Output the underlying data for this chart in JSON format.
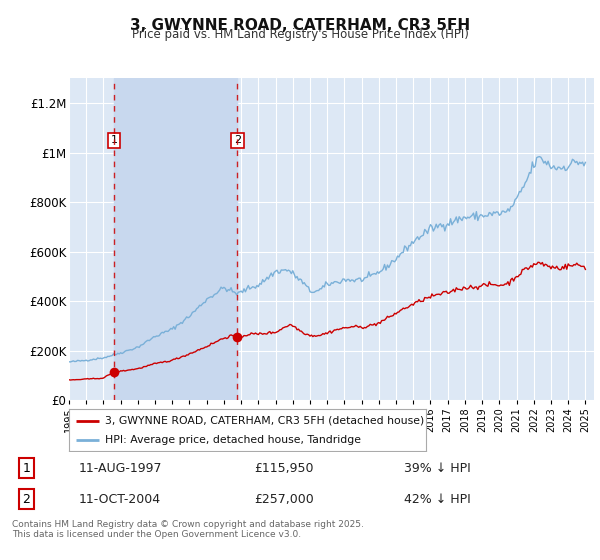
{
  "title": "3, GWYNNE ROAD, CATERHAM, CR3 5FH",
  "subtitle": "Price paid vs. HM Land Registry's House Price Index (HPI)",
  "ylim": [
    0,
    1300000
  ],
  "yticks": [
    0,
    200000,
    400000,
    600000,
    800000,
    1000000,
    1200000
  ],
  "ytick_labels": [
    "£0",
    "£200K",
    "£400K",
    "£600K",
    "£800K",
    "£1M",
    "£1.2M"
  ],
  "background_color": "#ffffff",
  "plot_bg_color": "#dde8f5",
  "grid_color": "#ffffff",
  "sale1_date_num": 1997.614,
  "sale1_label": "1",
  "sale1_price": 115950,
  "sale1_date_str": "11-AUG-1997",
  "sale1_hpi_pct": "39% ↓ HPI",
  "sale2_date_num": 2004.781,
  "sale2_label": "2",
  "sale2_price": 257000,
  "sale2_date_str": "11-OCT-2004",
  "sale2_hpi_pct": "42% ↓ HPI",
  "line1_color": "#cc0000",
  "line2_color": "#7ab0d8",
  "shade_color": "#c8d8ee",
  "line1_label": "3, GWYNNE ROAD, CATERHAM, CR3 5FH (detached house)",
  "line2_label": "HPI: Average price, detached house, Tandridge",
  "footer": "Contains HM Land Registry data © Crown copyright and database right 2025.\nThis data is licensed under the Open Government Licence v3.0.",
  "xlim_left": 1995.0,
  "xlim_right": 2025.5
}
